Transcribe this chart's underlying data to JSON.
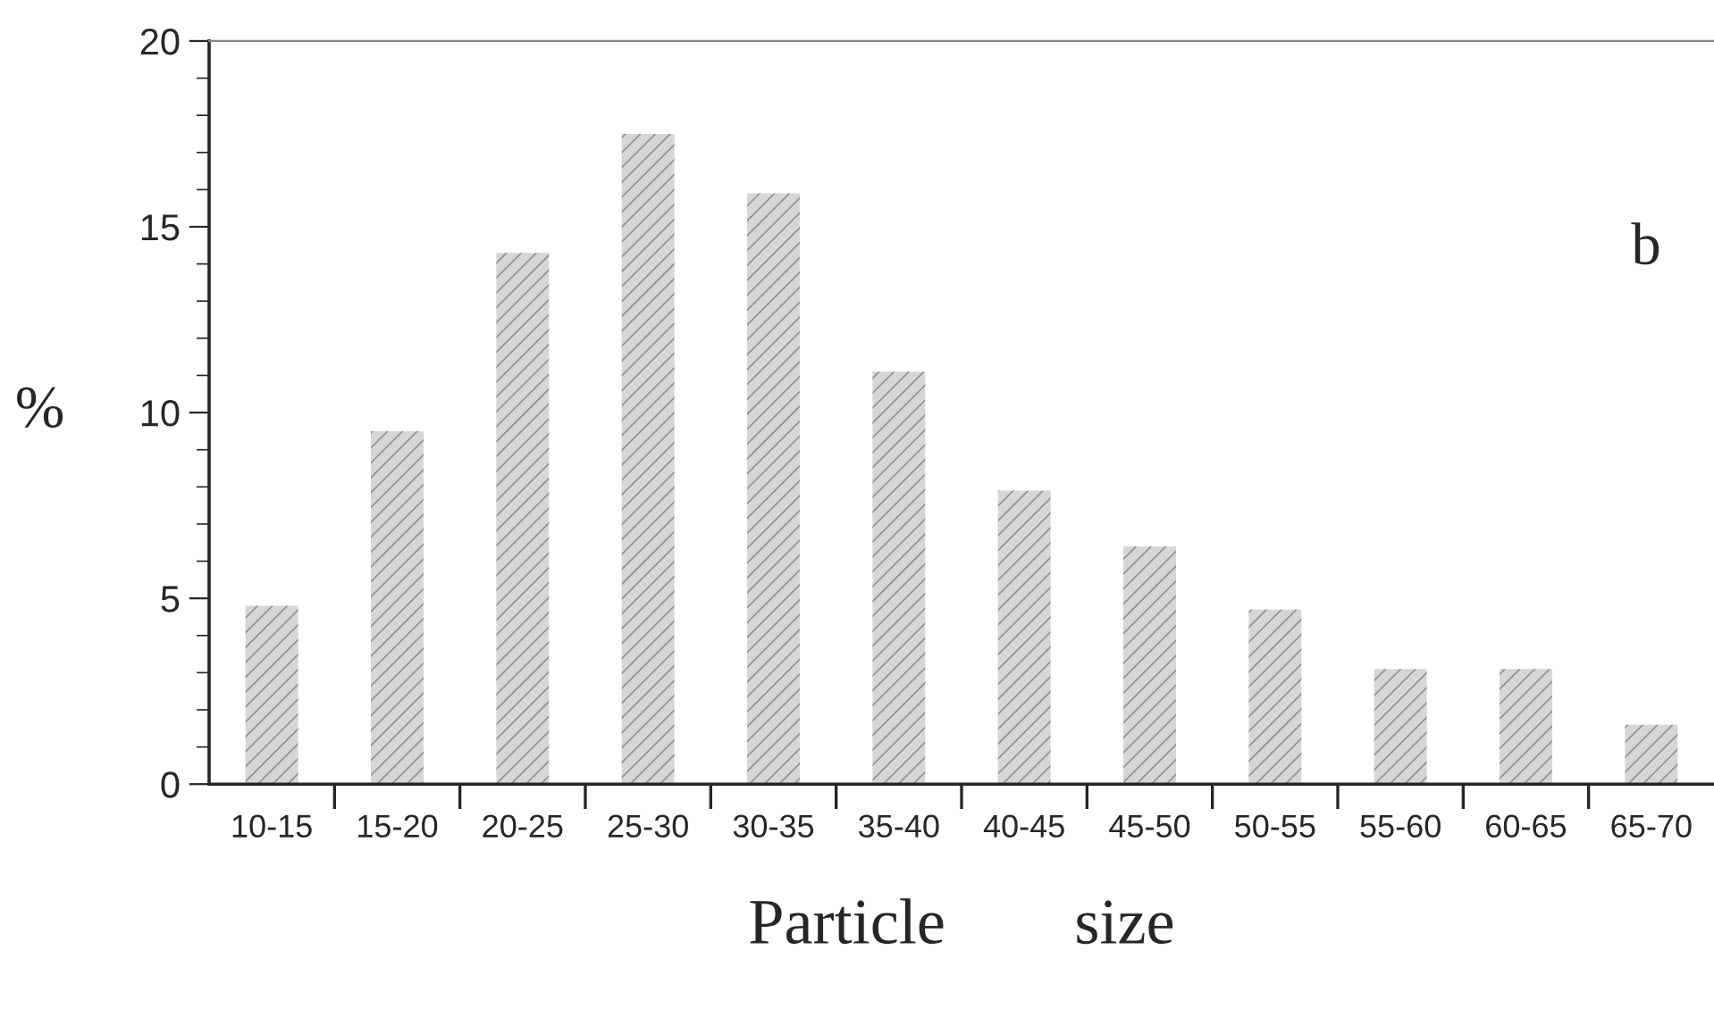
{
  "chart_data": {
    "type": "bar",
    "xlabel": "Particle        size",
    "ylabel": "%",
    "categories": [
      "10-15",
      "15-20",
      "20-25",
      "25-30",
      "30-35",
      "35-40",
      "40-45",
      "45-50",
      "50-55",
      "55-60",
      "60-65",
      "65-70"
    ],
    "values": [
      4.8,
      9.5,
      14.3,
      17.5,
      15.9,
      11.1,
      7.9,
      6.4,
      4.7,
      3.1,
      3.1,
      1.6
    ],
    "color": "#d6d6d6",
    "ylim": [
      0,
      20
    ],
    "yticks": [
      0,
      5,
      10,
      15,
      20
    ],
    "grid": false,
    "legend": false,
    "annotations": [
      "b"
    ]
  }
}
